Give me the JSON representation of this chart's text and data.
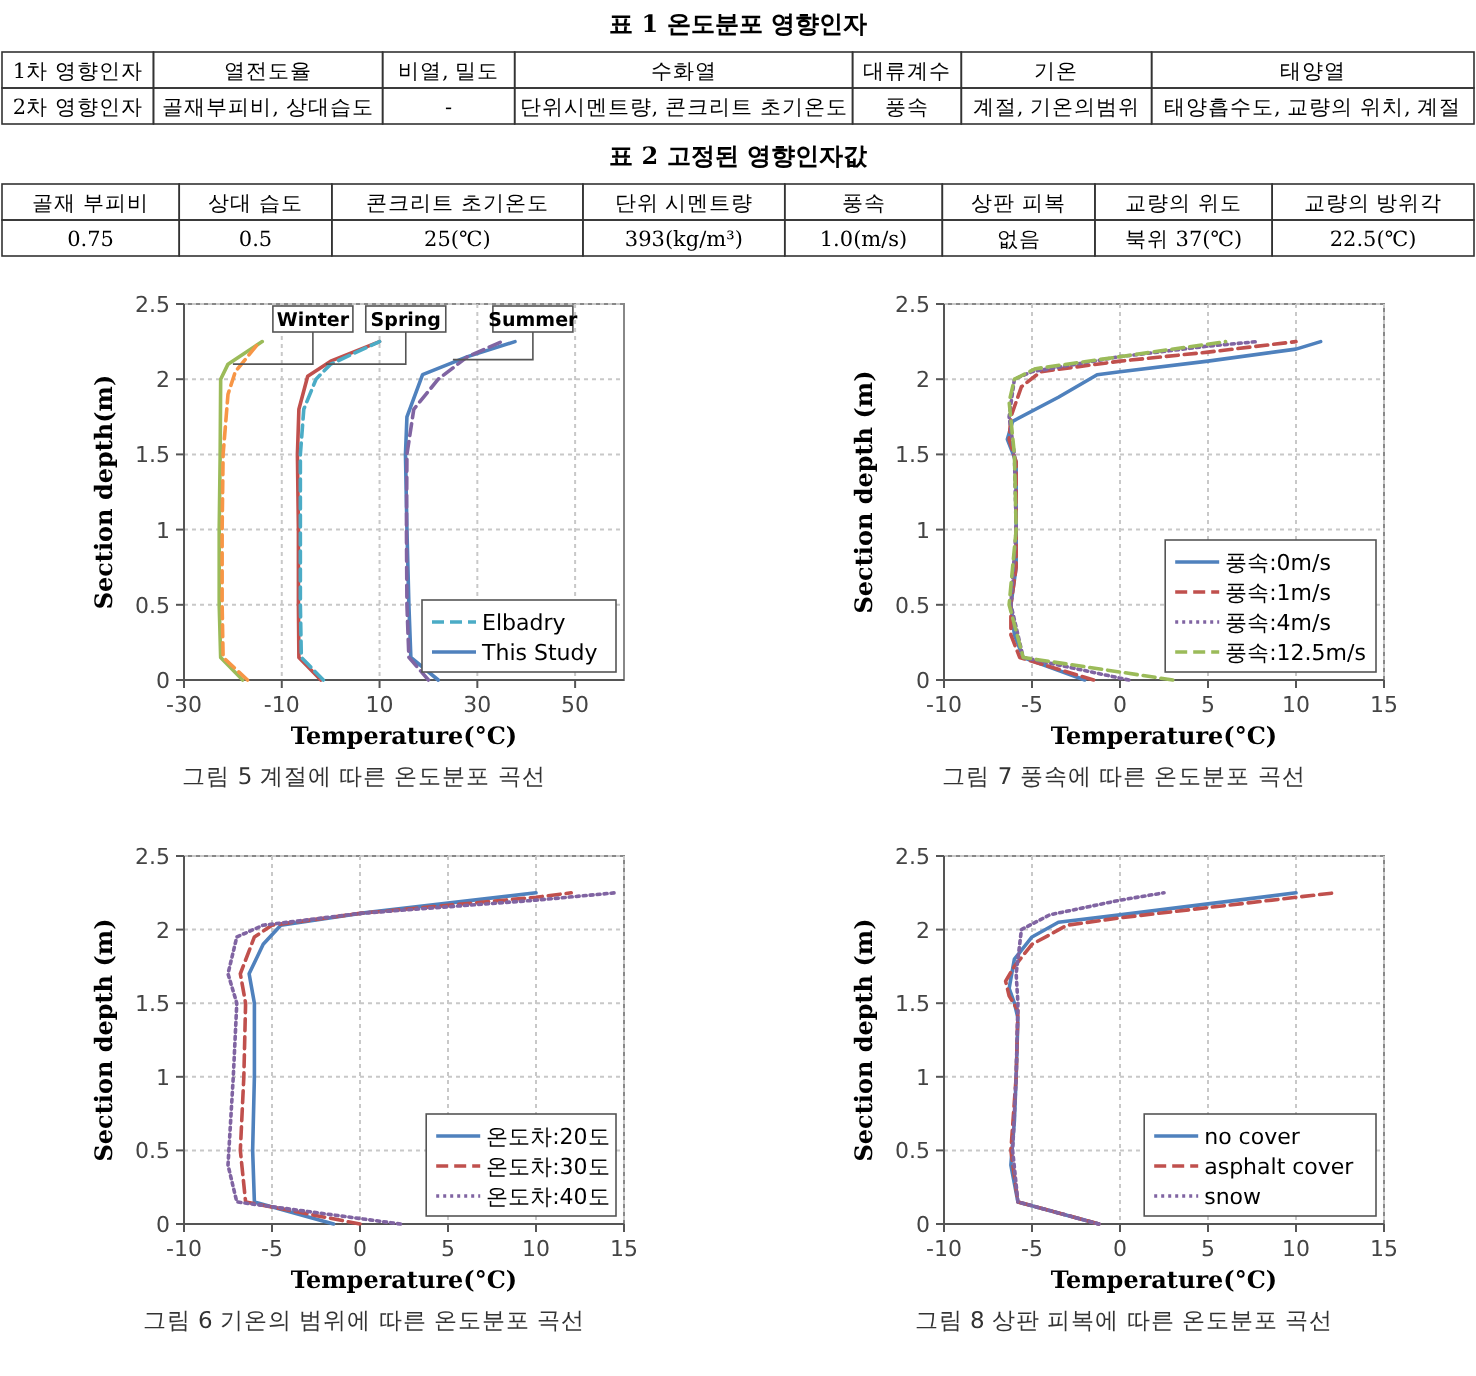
{
  "chart_data": [
    {
      "type": "other",
      "title": "표 1 온도분포 영향인자",
      "categories": [
        "1차 영향인자",
        "열전도율",
        "비열, 밀도",
        "수화열",
        "대류계수",
        "기온",
        "태양열"
      ],
      "annotations": [
        "2차 영향인자",
        "골재부피비, 상대습도",
        "-",
        "단위시멘트량, 콘크리트 초기온도",
        "풍속",
        "계절, 기온의범위",
        "태양흡수도, 교량의 위치, 계절"
      ]
    },
    {
      "type": "other",
      "title": "표 2 고정된 영향인자값",
      "categories": [
        "골재 부피비",
        "상대 습도",
        "콘크리트 초기온도",
        "단위 시멘트량",
        "풍속",
        "상판 피복",
        "교량의 위도",
        "교량의 방위각"
      ],
      "annotations": [
        "0.75",
        "0.5",
        "25(℃)",
        "393(kg/m³)",
        "1.0(m/s)",
        "없음",
        "북위 37(℃)",
        "22.5(℃)"
      ]
    },
    {
      "type": "line",
      "xlabel": "Temperature(°C)",
      "ylabel": "Section depth(m)",
      "xlim": [
        -30,
        60
      ],
      "ylim": [
        0,
        2.5
      ],
      "xticks": [
        -30,
        -10,
        10,
        30,
        50
      ],
      "yticks": [
        0,
        0.5,
        1,
        1.5,
        2,
        2.5
      ],
      "grid": true,
      "legend": "bottom right",
      "series": [
        {
          "color": "#9bbb59",
          "line_style": "solid",
          "x": [
            -18,
            -22.5,
            -22.8,
            -22.8,
            -22.6,
            -22.5,
            -21,
            -14
          ],
          "values": [
            0,
            0.15,
            0.5,
            1,
            1.5,
            2,
            2.1,
            2.25
          ]
        },
        {
          "color": "#f79646",
          "line_style": "dashed",
          "x": [
            -17,
            -22,
            -22.2,
            -22.2,
            -22,
            -21,
            -19.5,
            -14.5
          ],
          "values": [
            0,
            0.15,
            0.5,
            1,
            1.5,
            1.9,
            2.05,
            2.25
          ]
        },
        {
          "color": "#c0504d",
          "line_style": "solid",
          "x": [
            -2,
            -6.5,
            -6.6,
            -6.6,
            -6.8,
            -6.5,
            -4.7,
            0,
            10
          ],
          "values": [
            0,
            0.15,
            0.5,
            1,
            1.5,
            1.8,
            2.02,
            2.12,
            2.25
          ]
        },
        {
          "name": "Elbadry",
          "color": "#4bacc6",
          "line_style": "dashed",
          "x": [
            -1.5,
            -6,
            -6.2,
            -6.2,
            -6.2,
            -5.5,
            -3,
            0,
            10
          ],
          "values": [
            0,
            0.15,
            0.5,
            1,
            1.5,
            1.8,
            2,
            2.1,
            2.25
          ]
        },
        {
          "name": "This Study",
          "color": "#4f81bd",
          "line_style": "solid",
          "x": [
            22,
            16.4,
            16,
            15.6,
            15.3,
            15.6,
            18.8,
            28,
            37.7
          ],
          "values": [
            0,
            0.15,
            0.5,
            1,
            1.5,
            1.75,
            2.03,
            2.15,
            2.25
          ]
        },
        {
          "color": "#8064a2",
          "line_style": "dashed",
          "x": [
            20,
            16,
            15.6,
            15.5,
            15.6,
            17,
            22,
            28,
            35
          ],
          "values": [
            0,
            0.15,
            0.5,
            1,
            1.5,
            1.8,
            2,
            2.15,
            2.25
          ]
        }
      ],
      "annotations": [
        "그림 5 계절에 따른 온도분포 곡선",
        {
          "text": "Winter",
          "x": -20,
          "y": 2.1
        },
        {
          "text": "Spring",
          "x": -1,
          "y": 2.1
        },
        {
          "text": "Summer",
          "x": 25,
          "y": 2.13
        }
      ]
    },
    {
      "type": "line",
      "xlabel": "Temperature(°C)",
      "ylabel": "Section depth (m)",
      "xlim": [
        -10,
        15
      ],
      "ylim": [
        0,
        2.5
      ],
      "xticks": [
        -10,
        -5,
        0,
        5,
        10,
        15
      ],
      "yticks": [
        0,
        0.5,
        1,
        1.5,
        2,
        2.5
      ],
      "grid": true,
      "legend": "bottom right",
      "series": [
        {
          "name": "풍속:0m/s",
          "color": "#4f81bd",
          "line_style": "solid",
          "x": [
            -2,
            -5.5,
            -6,
            -6.2,
            -5.9,
            -5.9,
            -5.9,
            -6.4,
            -6.1,
            -3.5,
            -1.3,
            0,
            5,
            10,
            11.4
          ],
          "values": [
            0,
            0.15,
            0.3,
            0.5,
            0.75,
            1,
            1.45,
            1.6,
            1.72,
            1.88,
            2.03,
            2.05,
            2.12,
            2.2,
            2.25
          ]
        },
        {
          "name": "풍속:1m/s",
          "color": "#c0504d",
          "line_style": "dashed",
          "x": [
            -1.5,
            -5.7,
            -6.2,
            -6.2,
            -5.9,
            -5.9,
            -5.9,
            -6.3,
            -6.2,
            -5.6,
            -4.5,
            0,
            5,
            10
          ],
          "values": [
            0,
            0.15,
            0.3,
            0.5,
            0.75,
            1,
            1.45,
            1.6,
            1.75,
            1.95,
            2.05,
            2.12,
            2.18,
            2.25
          ]
        },
        {
          "name": "풍속:4m/s",
          "color": "#8064a2",
          "line_style": "dotted",
          "x": [
            0.5,
            -5.5,
            -6.2,
            -5.9,
            -6,
            -6.3,
            -6,
            -5,
            0,
            5,
            7.8
          ],
          "values": [
            0,
            0.15,
            0.5,
            1,
            1.5,
            1.75,
            2,
            2.05,
            2.15,
            2.22,
            2.25
          ]
        },
        {
          "name": "풍속:12.5m/s",
          "color": "#9bbb59",
          "line_style": "dashed",
          "x": [
            3,
            -5.5,
            -6.3,
            -5.9,
            -6,
            -6.3,
            -6,
            -4.8,
            0,
            6
          ],
          "values": [
            0,
            0.15,
            0.5,
            1,
            1.5,
            1.85,
            2,
            2.07,
            2.15,
            2.25
          ]
        }
      ],
      "annotations": [
        "그림 7 풍속에 따른 온도분포 곡선"
      ]
    },
    {
      "type": "line",
      "xlabel": "Temperature(°C)",
      "ylabel": "Section depth (m)",
      "xlim": [
        -10,
        15
      ],
      "ylim": [
        0,
        2.5
      ],
      "xticks": [
        -10,
        -5,
        0,
        5,
        10,
        15
      ],
      "yticks": [
        0,
        0.5,
        1,
        1.5,
        2,
        2.5
      ],
      "grid": true,
      "legend": "bottom right",
      "series": [
        {
          "name": "온도차:20도",
          "color": "#4f81bd",
          "line_style": "solid",
          "x": [
            -1.5,
            -6,
            -6.1,
            -6,
            -6,
            -6.3,
            -5.5,
            -4.5,
            0,
            10
          ],
          "values": [
            0,
            0.15,
            0.5,
            1,
            1.5,
            1.7,
            1.9,
            2.03,
            2.11,
            2.25
          ]
        },
        {
          "name": "온도차:30도",
          "color": "#c0504d",
          "line_style": "dashed",
          "x": [
            0,
            -6.5,
            -6.8,
            -6.6,
            -6.5,
            -6.8,
            -6,
            -5,
            0,
            10,
            12
          ],
          "values": [
            0,
            0.15,
            0.5,
            1,
            1.5,
            1.7,
            1.95,
            2.03,
            2.11,
            2.22,
            2.25
          ]
        },
        {
          "name": "온도차:40도",
          "color": "#8064a2",
          "line_style": "dotted",
          "x": [
            2.3,
            -7,
            -7.5,
            -7.2,
            -7,
            -7.5,
            -7,
            -5.5,
            0,
            10,
            14.5
          ],
          "values": [
            0,
            0.15,
            0.4,
            1,
            1.5,
            1.7,
            1.95,
            2.03,
            2.11,
            2.2,
            2.25
          ]
        }
      ],
      "annotations": [
        "그림 6 기온의 범위에 따른 온도분포 곡선"
      ]
    },
    {
      "type": "line",
      "xlabel": "Temperature(°C)",
      "ylabel": "Section depth (m)",
      "xlim": [
        -10,
        15
      ],
      "ylim": [
        0,
        2.5
      ],
      "xticks": [
        -10,
        -5,
        0,
        5,
        10,
        15
      ],
      "yticks": [
        0,
        0.5,
        1,
        1.5,
        2,
        2.5
      ],
      "grid": true,
      "legend": "bottom right",
      "series": [
        {
          "name": "no cover",
          "color": "#4f81bd",
          "line_style": "solid",
          "x": [
            -1.2,
            -5.8,
            -6.2,
            -6,
            -5.9,
            -5.8,
            -6,
            -6.3,
            -6,
            -5,
            -3.5,
            0,
            10
          ],
          "values": [
            0,
            0.15,
            0.4,
            0.7,
            1,
            1.4,
            1.5,
            1.6,
            1.8,
            1.95,
            2.05,
            2.1,
            2.25
          ]
        },
        {
          "name": "asphalt cover",
          "color": "#c0504d",
          "line_style": "dashed",
          "x": [
            -1.2,
            -5.8,
            -6.2,
            -5.9,
            -5.8,
            -6.3,
            -6.5,
            -6,
            -5,
            -3,
            0,
            12.2
          ],
          "values": [
            0,
            0.15,
            0.5,
            1,
            1.45,
            1.55,
            1.65,
            1.75,
            1.9,
            2.03,
            2.08,
            2.25
          ]
        },
        {
          "name": "snow",
          "color": "#8064a2",
          "line_style": "dotted",
          "x": [
            -1.2,
            -5.8,
            -6.1,
            -5.9,
            -5.8,
            -5.9,
            -5.6,
            -4,
            0,
            2.5
          ],
          "values": [
            0,
            0.15,
            0.5,
            1,
            1.5,
            1.7,
            2,
            2.1,
            2.2,
            2.25
          ]
        }
      ],
      "annotations": [
        "그림 8 상판 피복에 따른 온도분포 곡선"
      ]
    }
  ]
}
